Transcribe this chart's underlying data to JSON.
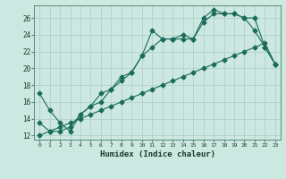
{
  "xlabel": "Humidex (Indice chaleur)",
  "background_color": "#cce8e0",
  "grid_color": "#aacfc8",
  "line_color": "#1a6b5a",
  "xlim": [
    -0.5,
    23.5
  ],
  "ylim": [
    11.5,
    27.5
  ],
  "xticks": [
    0,
    1,
    2,
    3,
    4,
    5,
    6,
    7,
    8,
    9,
    10,
    11,
    12,
    13,
    14,
    15,
    16,
    17,
    18,
    19,
    20,
    21,
    22,
    23
  ],
  "yticks": [
    12,
    14,
    16,
    18,
    20,
    22,
    24,
    26
  ],
  "series1_x": [
    0,
    1,
    2,
    3,
    4,
    5,
    6,
    7,
    8,
    9,
    10,
    11,
    12,
    13,
    14,
    15,
    16,
    17,
    18,
    19,
    20,
    21,
    22,
    23
  ],
  "series1_y": [
    17.0,
    15.0,
    13.5,
    12.5,
    14.5,
    15.5,
    16.0,
    17.5,
    19.0,
    19.5,
    21.5,
    24.5,
    23.5,
    23.5,
    23.5,
    23.5,
    26.0,
    27.0,
    26.5,
    26.5,
    26.0,
    24.5,
    22.5,
    20.5
  ],
  "series2_x": [
    0,
    1,
    2,
    3,
    4,
    5,
    6,
    7,
    8,
    9,
    10,
    11,
    12,
    13,
    14,
    15,
    16,
    17,
    18,
    19,
    20,
    21,
    22,
    23
  ],
  "series2_y": [
    13.5,
    12.5,
    12.5,
    13.0,
    14.5,
    15.5,
    17.0,
    17.5,
    18.5,
    19.5,
    21.5,
    22.5,
    23.5,
    23.5,
    24.0,
    23.5,
    25.5,
    26.5,
    26.5,
    26.5,
    26.0,
    26.0,
    22.5,
    20.5
  ],
  "series3_x": [
    0,
    1,
    2,
    3,
    4,
    5,
    6,
    7,
    8,
    9,
    10,
    11,
    12,
    13,
    14,
    15,
    16,
    17,
    18,
    19,
    20,
    21,
    22,
    23
  ],
  "series3_y": [
    12.0,
    12.5,
    13.0,
    13.5,
    14.0,
    14.5,
    15.0,
    15.5,
    16.0,
    16.5,
    17.0,
    17.5,
    18.0,
    18.5,
    19.0,
    19.5,
    20.0,
    20.5,
    21.0,
    21.5,
    22.0,
    22.5,
    23.0,
    20.5
  ]
}
